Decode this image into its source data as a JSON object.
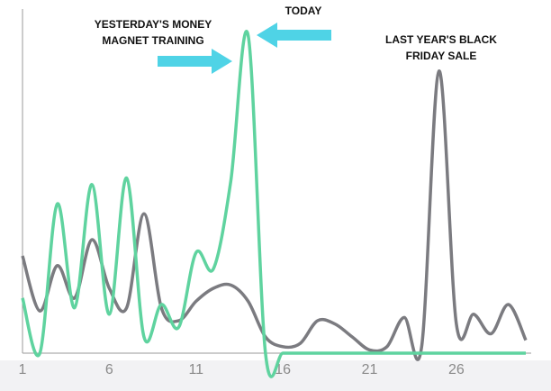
{
  "chart_data": {
    "type": "line",
    "x": [
      1,
      2,
      3,
      4,
      5,
      6,
      7,
      8,
      9,
      10,
      11,
      12,
      13,
      14,
      15,
      16,
      17,
      18,
      19,
      20,
      21,
      22,
      23,
      24,
      25,
      26,
      27,
      28,
      29,
      30
    ],
    "xlim": [
      1,
      30
    ],
    "xticks": [
      1,
      6,
      11,
      16,
      21,
      26
    ],
    "ylim": [
      0,
      100
    ],
    "series": [
      {
        "color": "#7b7b80",
        "values": [
          30,
          13,
          27,
          17,
          35,
          20,
          14,
          43,
          14,
          10,
          16,
          20,
          21,
          16,
          5,
          2,
          3,
          10,
          9,
          5,
          1,
          2,
          11,
          2,
          87,
          9,
          12,
          6,
          15,
          4
        ]
      },
      {
        "color": "#5fd39f",
        "values": [
          17,
          0,
          46,
          14,
          52,
          12,
          54,
          5,
          15,
          8,
          31,
          26,
          53,
          98,
          0,
          0,
          0,
          0,
          0,
          0,
          0,
          0,
          0,
          0,
          0,
          0,
          0,
          0,
          0,
          0
        ]
      }
    ],
    "annotations": [
      {
        "lines": [
          "YESTERDAY'S MONEY",
          "MAGNET TRAINING"
        ]
      },
      {
        "lines": [
          "TODAY"
        ]
      },
      {
        "lines": [
          "LAST YEAR'S BLACK",
          "FRIDAY SALE"
        ]
      }
    ]
  }
}
